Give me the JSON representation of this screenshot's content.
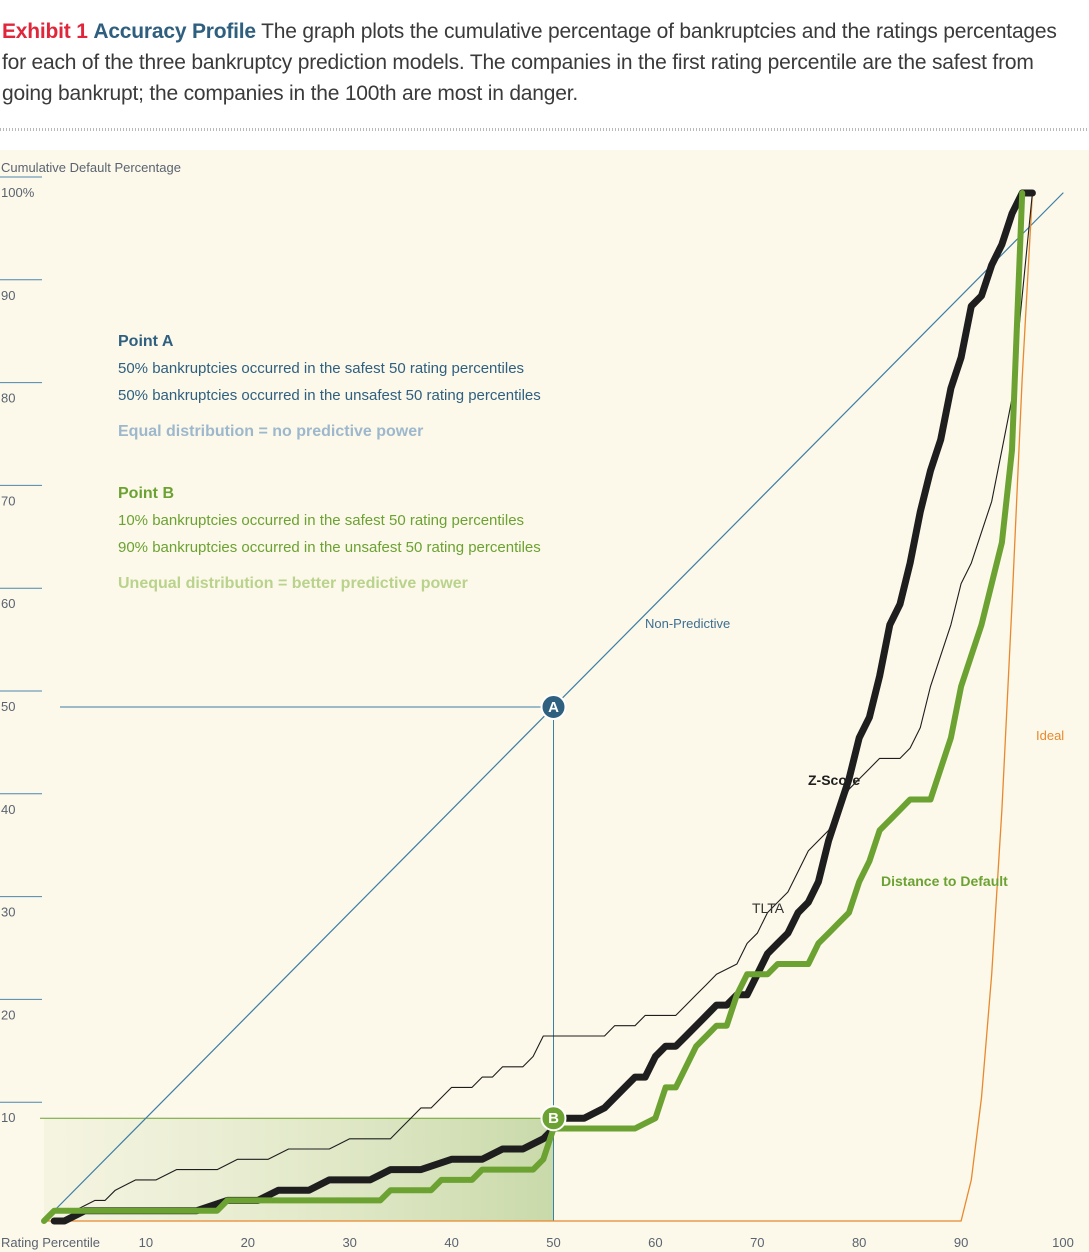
{
  "caption": {
    "exhibit": "Exhibit 1",
    "title": "Accuracy Profile",
    "text": "The graph plots the cumulative percentage of bankruptcies and the ratings percentages for each of the three bankruptcy prediction models. The companies in the first rating percentile are the safest from going bankrupt; the companies in the 100th are most in danger."
  },
  "colors": {
    "exhibit": "#e0263b",
    "title": "#2f5f7f",
    "plot_bg": "#fcf8ea",
    "non_predictive": "#3d7ea6",
    "point_a": "#2f6080",
    "point_a_sub": "#9db8cc",
    "z_score": "#1e1e1e",
    "tlta": "#1e1e1e",
    "distance_to_default": "#6ca232",
    "point_b_sub": "#b9d38c",
    "ideal": "#e8892d"
  },
  "chart_data": {
    "type": "line",
    "xlabel": "Rating Percentile",
    "ylabel": "Cumulative Default Percentage",
    "xlim": [
      0,
      100
    ],
    "ylim": [
      0,
      100
    ],
    "x_ticks": [
      "10",
      "20",
      "30",
      "40",
      "50",
      "60",
      "70",
      "80",
      "90",
      "100"
    ],
    "y_ticks": [
      "10",
      "20",
      "30",
      "40",
      "50",
      "60",
      "70",
      "80",
      "90",
      "100%"
    ],
    "series": [
      {
        "name": "Non-Predictive",
        "points": [
          [
            0,
            0
          ],
          [
            100,
            100
          ]
        ]
      },
      {
        "name": "Z-Score",
        "points": [
          [
            1,
            0
          ],
          [
            2,
            0
          ],
          [
            4,
            1
          ],
          [
            8,
            1
          ],
          [
            10,
            1
          ],
          [
            12,
            1
          ],
          [
            15,
            1
          ],
          [
            18,
            2
          ],
          [
            21,
            2
          ],
          [
            23,
            3
          ],
          [
            26,
            3
          ],
          [
            28,
            4
          ],
          [
            30,
            4
          ],
          [
            32,
            4
          ],
          [
            34,
            5
          ],
          [
            37,
            5
          ],
          [
            40,
            6
          ],
          [
            43,
            6
          ],
          [
            45,
            7
          ],
          [
            47,
            7
          ],
          [
            49,
            8
          ],
          [
            51,
            10
          ],
          [
            53,
            10
          ],
          [
            55,
            11
          ],
          [
            57,
            13
          ],
          [
            58,
            14
          ],
          [
            59,
            14
          ],
          [
            60,
            16
          ],
          [
            61,
            17
          ],
          [
            62,
            17
          ],
          [
            63,
            18
          ],
          [
            65,
            20
          ],
          [
            66,
            21
          ],
          [
            67,
            21
          ],
          [
            68,
            22
          ],
          [
            69,
            22
          ],
          [
            70,
            24
          ],
          [
            71,
            26
          ],
          [
            72,
            27
          ],
          [
            73,
            28
          ],
          [
            74,
            30
          ],
          [
            75,
            31
          ],
          [
            76,
            33
          ],
          [
            77,
            37
          ],
          [
            78,
            40
          ],
          [
            79,
            43
          ],
          [
            80,
            47
          ],
          [
            81,
            49
          ],
          [
            82,
            53
          ],
          [
            83,
            58
          ],
          [
            84,
            60
          ],
          [
            85,
            64
          ],
          [
            86,
            69
          ],
          [
            87,
            73
          ],
          [
            88,
            76
          ],
          [
            89,
            81
          ],
          [
            90,
            84
          ],
          [
            91,
            89
          ],
          [
            92,
            90
          ],
          [
            93,
            93
          ],
          [
            94,
            95
          ],
          [
            95,
            98
          ],
          [
            96,
            100
          ],
          [
            97,
            100
          ]
        ]
      },
      {
        "name": "TLTA",
        "points": [
          [
            0,
            0
          ],
          [
            1,
            1
          ],
          [
            3,
            1
          ],
          [
            5,
            2
          ],
          [
            6,
            2
          ],
          [
            7,
            3
          ],
          [
            9,
            4
          ],
          [
            11,
            4
          ],
          [
            13,
            5
          ],
          [
            15,
            5
          ],
          [
            17,
            5
          ],
          [
            19,
            6
          ],
          [
            22,
            6
          ],
          [
            24,
            7
          ],
          [
            26,
            7
          ],
          [
            28,
            7
          ],
          [
            30,
            8
          ],
          [
            32,
            8
          ],
          [
            34,
            8
          ],
          [
            35,
            9
          ],
          [
            36,
            10
          ],
          [
            37,
            11
          ],
          [
            38,
            11
          ],
          [
            39,
            12
          ],
          [
            40,
            13
          ],
          [
            41,
            13
          ],
          [
            42,
            13
          ],
          [
            43,
            14
          ],
          [
            44,
            14
          ],
          [
            45,
            15
          ],
          [
            46,
            15
          ],
          [
            47,
            15
          ],
          [
            48,
            16
          ],
          [
            49,
            18
          ],
          [
            50,
            18
          ],
          [
            52,
            18
          ],
          [
            55,
            18
          ],
          [
            56,
            19
          ],
          [
            58,
            19
          ],
          [
            59,
            20
          ],
          [
            60,
            20
          ],
          [
            62,
            20
          ],
          [
            63,
            21
          ],
          [
            64,
            22
          ],
          [
            65,
            23
          ],
          [
            66,
            24
          ],
          [
            68,
            25
          ],
          [
            69,
            27
          ],
          [
            70,
            28
          ],
          [
            71,
            30
          ],
          [
            72,
            31
          ],
          [
            73,
            32
          ],
          [
            74,
            34
          ],
          [
            75,
            36
          ],
          [
            76,
            37
          ],
          [
            77,
            38
          ],
          [
            78,
            40
          ],
          [
            79,
            42
          ],
          [
            80,
            43
          ],
          [
            81,
            44
          ],
          [
            82,
            45
          ],
          [
            83,
            45
          ],
          [
            84,
            45
          ],
          [
            85,
            46
          ],
          [
            86,
            48
          ],
          [
            87,
            52
          ],
          [
            88,
            55
          ],
          [
            89,
            58
          ],
          [
            90,
            62
          ],
          [
            91,
            64
          ],
          [
            92,
            67
          ],
          [
            93,
            70
          ],
          [
            94,
            75
          ],
          [
            95,
            80
          ],
          [
            96,
            90
          ],
          [
            97,
            100
          ]
        ]
      },
      {
        "name": "Distance to Default",
        "points": [
          [
            0,
            0
          ],
          [
            1,
            1
          ],
          [
            3,
            1
          ],
          [
            5,
            1
          ],
          [
            10,
            1
          ],
          [
            17,
            1
          ],
          [
            18,
            2
          ],
          [
            20,
            2
          ],
          [
            25,
            2
          ],
          [
            30,
            2
          ],
          [
            33,
            2
          ],
          [
            34,
            3
          ],
          [
            37,
            3
          ],
          [
            38,
            3
          ],
          [
            39,
            4
          ],
          [
            40,
            4
          ],
          [
            42,
            4
          ],
          [
            43,
            5
          ],
          [
            46,
            5
          ],
          [
            48,
            5
          ],
          [
            49,
            6
          ],
          [
            50,
            9
          ],
          [
            52,
            9
          ],
          [
            54,
            9
          ],
          [
            56,
            9
          ],
          [
            58,
            9
          ],
          [
            60,
            10
          ],
          [
            61,
            13
          ],
          [
            62,
            13
          ],
          [
            63,
            15
          ],
          [
            64,
            17
          ],
          [
            65,
            18
          ],
          [
            66,
            19
          ],
          [
            67,
            19
          ],
          [
            68,
            22
          ],
          [
            69,
            24
          ],
          [
            70,
            24
          ],
          [
            71,
            24
          ],
          [
            72,
            25
          ],
          [
            73,
            25
          ],
          [
            74,
            25
          ],
          [
            75,
            25
          ],
          [
            76,
            27
          ],
          [
            77,
            28
          ],
          [
            78,
            29
          ],
          [
            79,
            30
          ],
          [
            80,
            33
          ],
          [
            81,
            35
          ],
          [
            82,
            38
          ],
          [
            83,
            39
          ],
          [
            84,
            40
          ],
          [
            85,
            41
          ],
          [
            86,
            41
          ],
          [
            87,
            41
          ],
          [
            88,
            44
          ],
          [
            89,
            47
          ],
          [
            90,
            52
          ],
          [
            91,
            55
          ],
          [
            92,
            58
          ],
          [
            93,
            62
          ],
          [
            94,
            66
          ],
          [
            95,
            75
          ],
          [
            96,
            100
          ]
        ]
      },
      {
        "name": "Ideal",
        "points": [
          [
            0,
            0
          ],
          [
            90,
            0
          ],
          [
            91,
            4
          ],
          [
            92,
            12
          ],
          [
            93,
            24
          ],
          [
            94,
            40
          ],
          [
            95,
            60
          ],
          [
            96,
            82
          ],
          [
            97,
            100
          ]
        ]
      }
    ],
    "annotations": {
      "non_predictive_label": "Non-Predictive",
      "z_score_label": "Z-Score",
      "tlta_label": "TLTA",
      "dtd_label": "Distance to Default",
      "ideal_label": "Ideal",
      "point_a": {
        "marker": "A",
        "x": 50,
        "y": 50
      },
      "point_b": {
        "marker": "B",
        "x": 50,
        "y": 10
      }
    },
    "grid": false,
    "legend": "none"
  },
  "notes": {
    "point_a": {
      "title": "Point A",
      "line1": "50% bankruptcies occurred in the safest 50 rating percentiles",
      "line2": "50% bankruptcies occurred in the unsafest 50 rating percentiles",
      "summary": "Equal distribution = no predictive power"
    },
    "point_b": {
      "title": "Point B",
      "line1": "10% bankruptcies occurred in the safest 50 rating percentiles",
      "line2": "90% bankruptcies occurred in the unsafest 50 rating percentiles",
      "summary": "Unequal distribution = better predictive power"
    }
  }
}
